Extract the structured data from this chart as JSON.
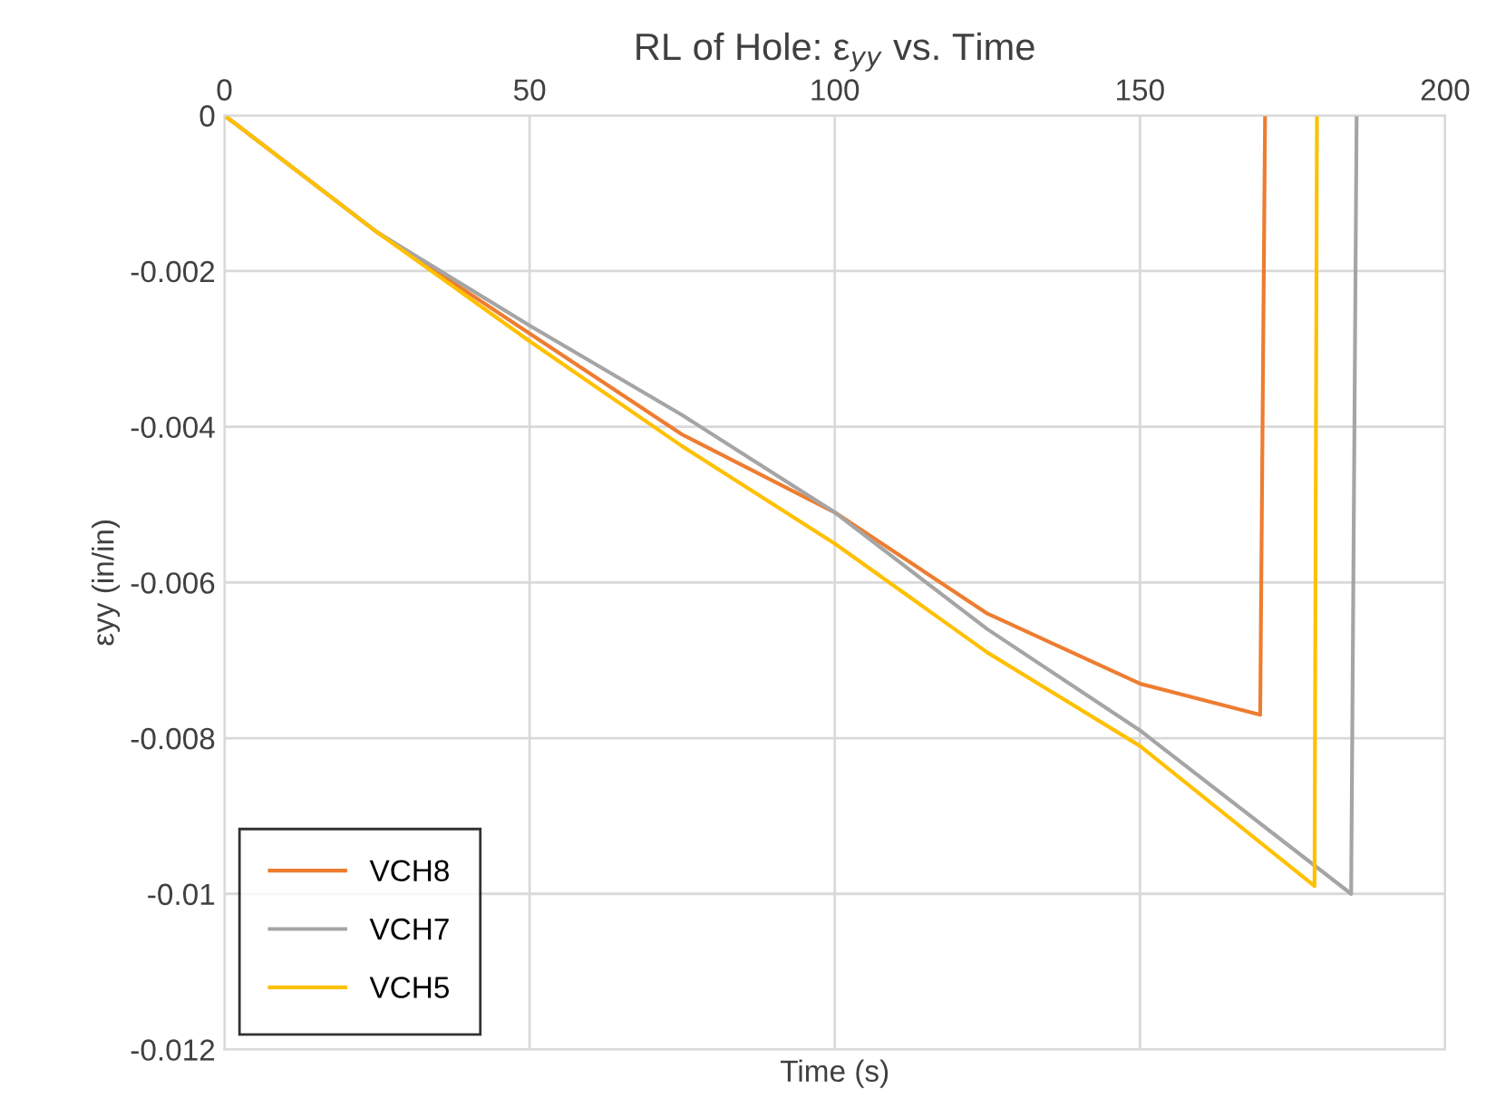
{
  "chart_data": {
    "type": "line",
    "title": "RL of Hole: ε$_{yy}$ vs. Time",
    "xlabel": "Time (s)",
    "ylabel": "εyy (in/in)",
    "xlim": [
      0,
      200
    ],
    "xticks": [
      0,
      50,
      100,
      150,
      200
    ],
    "ylim": [
      -0.012,
      0
    ],
    "yticks": [
      -0.012,
      -0.01,
      -0.008,
      -0.006,
      -0.004,
      -0.002,
      0
    ],
    "grid": true,
    "legend": "bottom left",
    "marker": "none",
    "line_style": "solid",
    "series": [
      {
        "name": "VCH8",
        "color": "#ed7d31",
        "x": [
          0,
          25,
          50,
          75,
          100,
          125,
          150,
          169.7,
          170.5
        ],
        "values": [
          0,
          -0.0015,
          -0.0028,
          -0.0041,
          -0.0051,
          -0.0064,
          -0.0073,
          -0.0077,
          0
        ]
      },
      {
        "name": "VCH7",
        "color": "#a5a5a5",
        "x": [
          0,
          25,
          50,
          75,
          100,
          125,
          150,
          184.6,
          185.5
        ],
        "values": [
          0,
          -0.0015,
          -0.0027,
          -0.00385,
          -0.0051,
          -0.0066,
          -0.0079,
          -0.01,
          0
        ]
      },
      {
        "name": "VCH5",
        "color": "#ffc000",
        "x": [
          0,
          25,
          50,
          75,
          100,
          125,
          150,
          178.6,
          179
        ],
        "values": [
          0,
          -0.0015,
          -0.0029,
          -0.00425,
          -0.0055,
          -0.0069,
          -0.0081,
          -0.0099,
          0
        ]
      }
    ]
  }
}
